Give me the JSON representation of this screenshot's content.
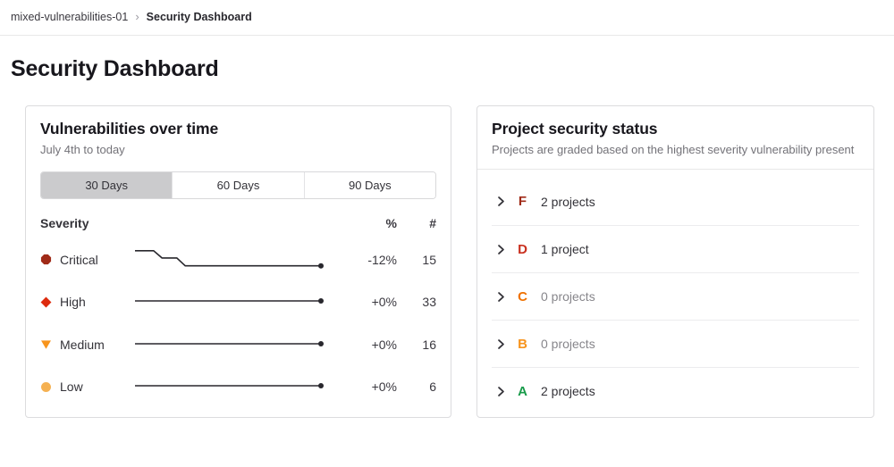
{
  "breadcrumb": {
    "project": "mixed-vulnerabilities-01",
    "separator": "›",
    "current": "Security Dashboard"
  },
  "page_title": "Security Dashboard",
  "vuln_card": {
    "title": "Vulnerabilities over time",
    "subtitle": "July 4th to today",
    "range_tabs": [
      {
        "label": "30 Days",
        "selected": true
      },
      {
        "label": "60 Days",
        "selected": false
      },
      {
        "label": "90 Days",
        "selected": false
      }
    ],
    "table": {
      "headers": {
        "severity": "Severity",
        "percent": "%",
        "count": "#"
      },
      "rows": [
        {
          "severity": "Critical",
          "icon_shape": "octagon",
          "color": "#a02b18",
          "percent": "-12%",
          "count": "15",
          "trend": [
            [
              0,
              0.08
            ],
            [
              0.1,
              0.08
            ],
            [
              0.145,
              0.45
            ],
            [
              0.225,
              0.45
            ],
            [
              0.27,
              0.85
            ],
            [
              1,
              0.85
            ]
          ]
        },
        {
          "severity": "High",
          "icon_shape": "diamond",
          "color": "#dd2b0e",
          "percent": "+0%",
          "count": "33",
          "trend": [
            [
              0,
              0.5
            ],
            [
              1,
              0.5
            ]
          ]
        },
        {
          "severity": "Medium",
          "icon_shape": "triangle-down",
          "color": "#f7941d",
          "percent": "+0%",
          "count": "16",
          "trend": [
            [
              0,
              0.5
            ],
            [
              1,
              0.5
            ]
          ]
        },
        {
          "severity": "Low",
          "icon_shape": "circle",
          "color": "#f5b152",
          "percent": "+0%",
          "count": "6",
          "trend": [
            [
              0,
              0.5
            ],
            [
              1,
              0.5
            ]
          ]
        }
      ]
    }
  },
  "status_card": {
    "title": "Project security status",
    "subtitle": "Projects are graded based on the highest severity vulnerability present",
    "grades": [
      {
        "grade": "F",
        "color": "#a02b18",
        "label": "2 projects",
        "muted": false
      },
      {
        "grade": "D",
        "color": "#c9301f",
        "label": "1 project",
        "muted": false
      },
      {
        "grade": "C",
        "color": "#ef7100",
        "label": "0 projects",
        "muted": true
      },
      {
        "grade": "B",
        "color": "#f7941d",
        "label": "0 projects",
        "muted": true
      },
      {
        "grade": "A",
        "color": "#189b4a",
        "label": "2 projects",
        "muted": false
      }
    ]
  }
}
